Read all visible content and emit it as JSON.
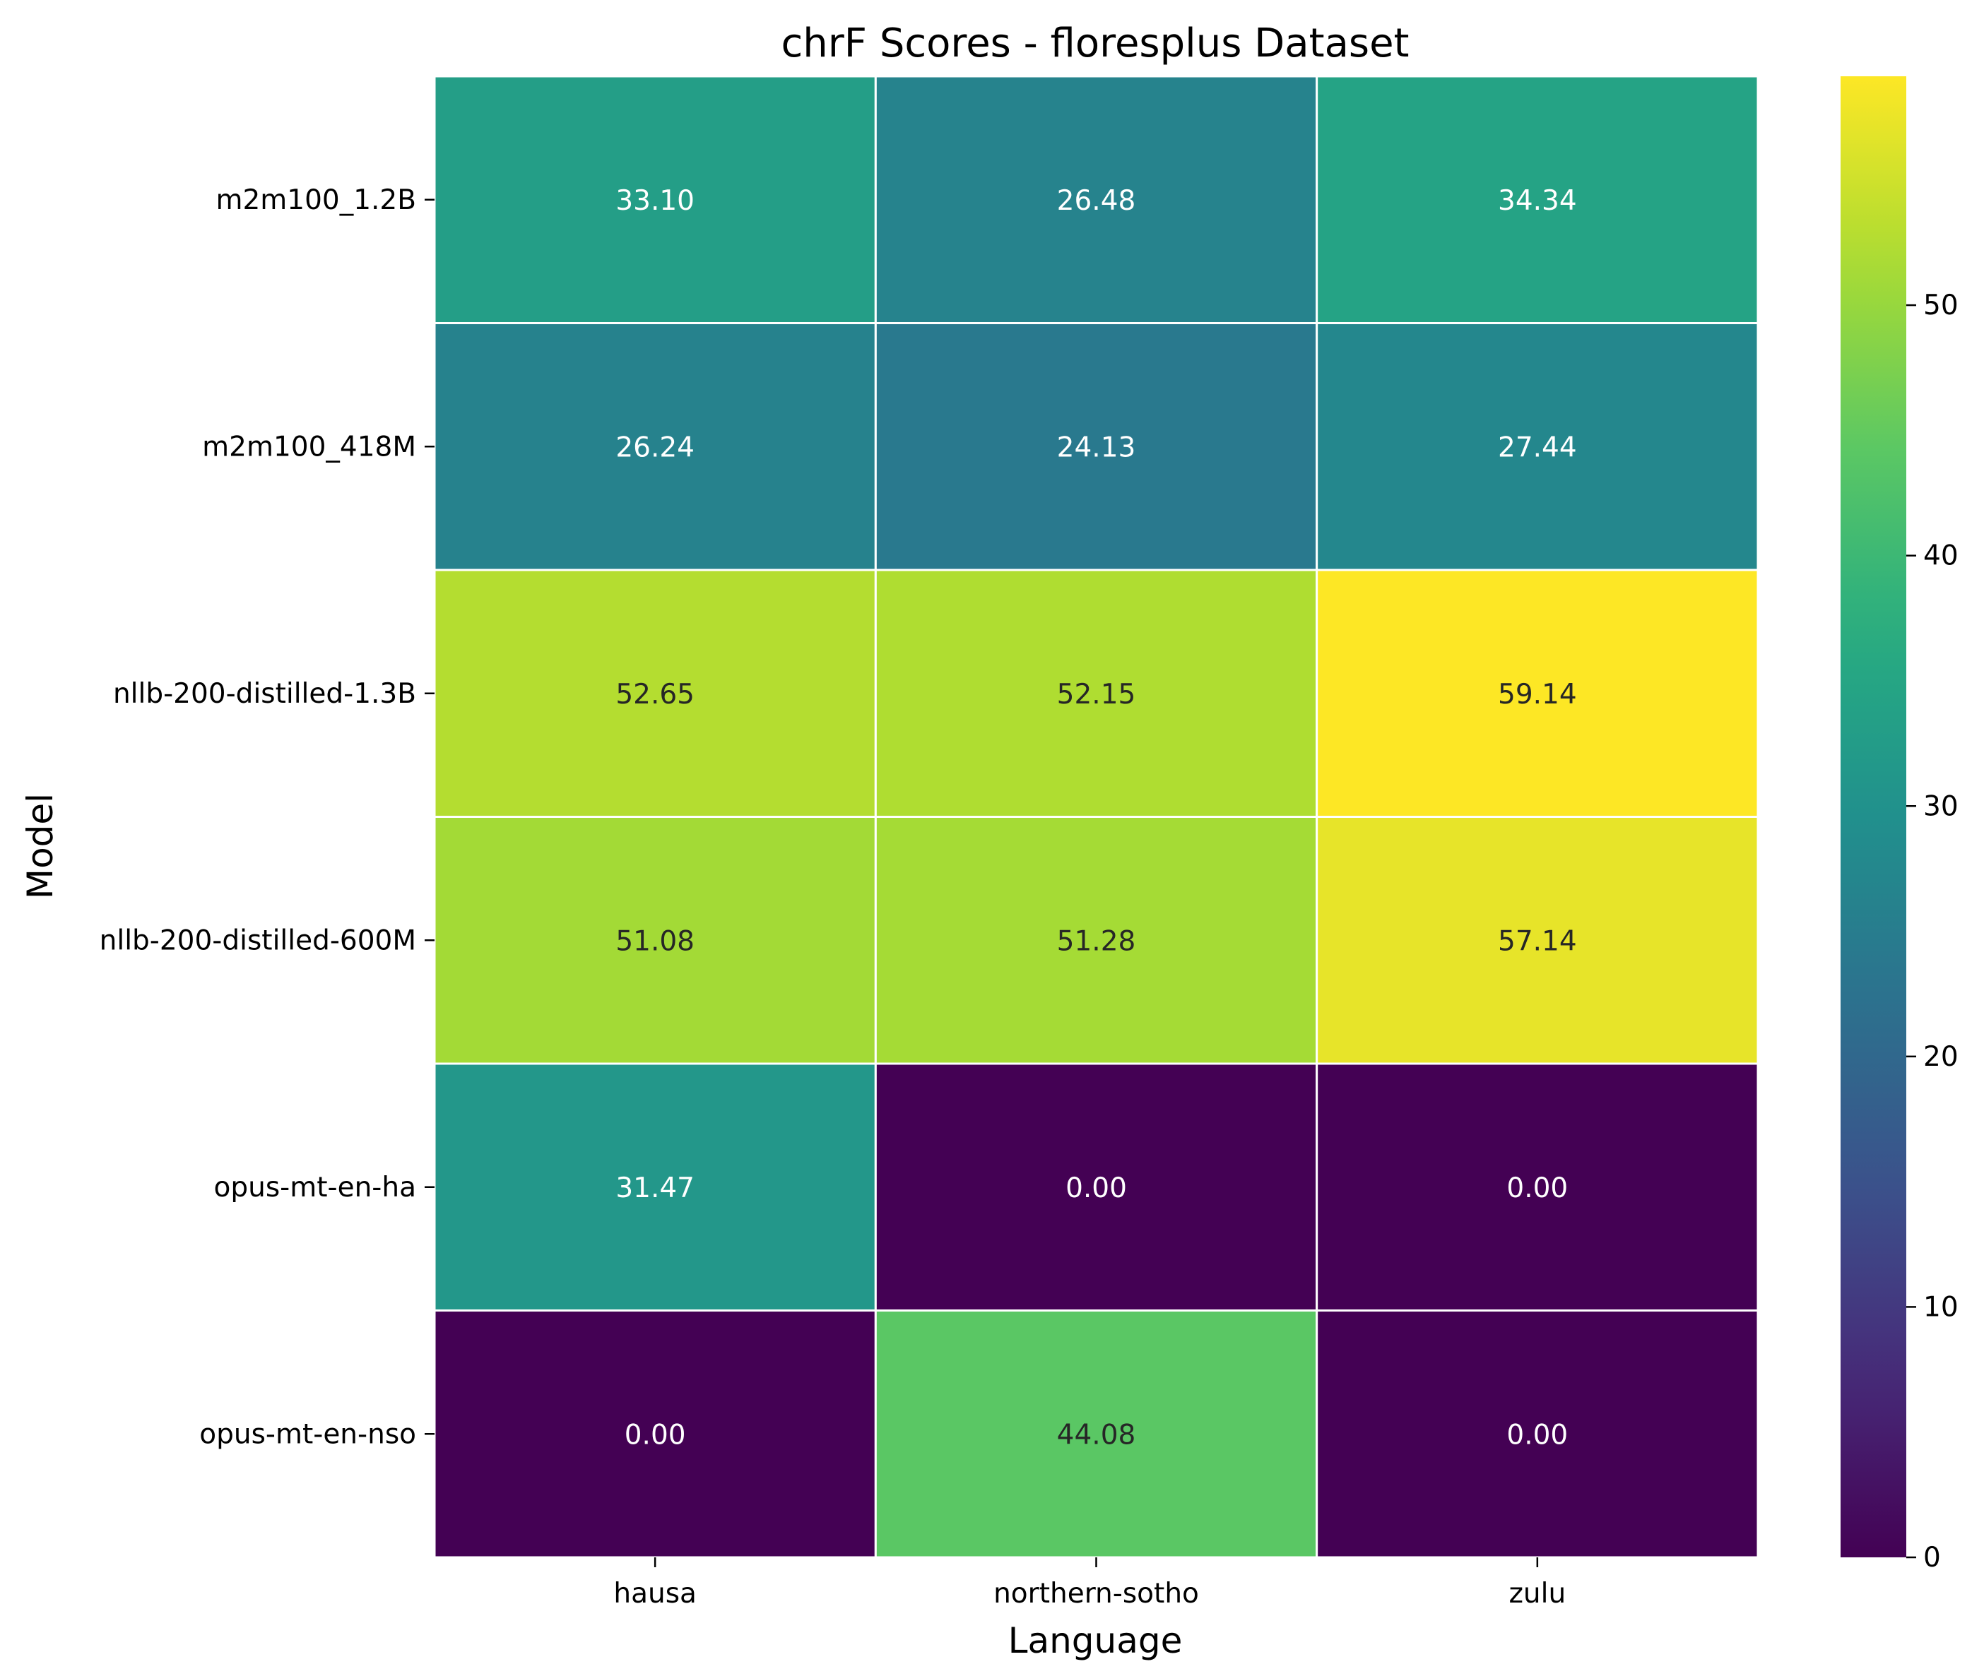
{
  "chart_data": {
    "type": "heatmap",
    "title": "chrF Scores - floresplus Dataset",
    "xlabel": "Language",
    "ylabel": "Model",
    "columns": [
      "hausa",
      "northern-sotho",
      "zulu"
    ],
    "rows": [
      "m2m100_1.2B",
      "m2m100_418M",
      "nllb-200-distilled-1.3B",
      "nllb-200-distilled-600M",
      "opus-mt-en-ha",
      "opus-mt-en-nso"
    ],
    "values": [
      [
        33.1,
        26.48,
        34.34
      ],
      [
        26.24,
        24.13,
        27.44
      ],
      [
        52.65,
        52.15,
        59.14
      ],
      [
        51.08,
        51.28,
        57.14
      ],
      [
        31.47,
        0.0,
        0.0
      ],
      [
        0.0,
        44.08,
        0.0
      ]
    ],
    "colormap": "viridis",
    "vmin": 0,
    "vmax": 59.14,
    "colorbar_ticks": [
      0,
      10,
      20,
      30,
      40,
      50
    ],
    "grid_line_color": "#ffffff",
    "annotate_format": "2 decimals"
  }
}
